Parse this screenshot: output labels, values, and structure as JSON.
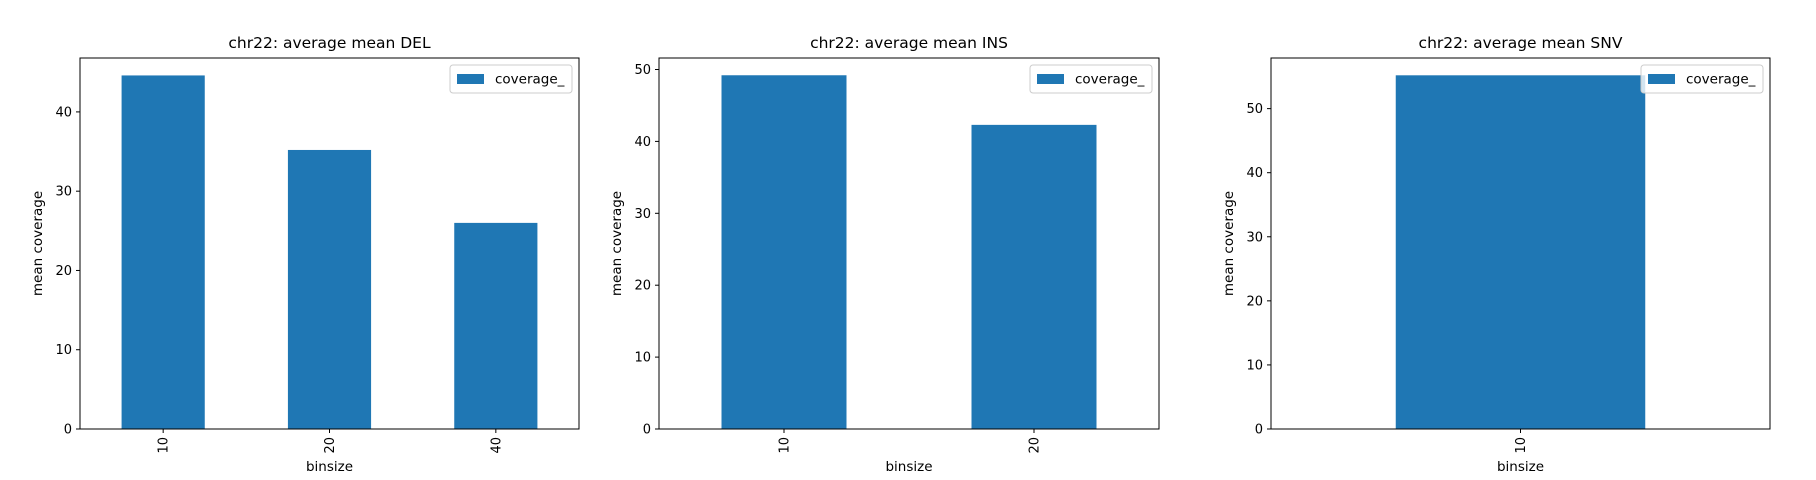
{
  "chart_data": [
    {
      "type": "bar",
      "title": "chr22: average mean DEL",
      "xlabel": "binsize",
      "ylabel": "mean coverage",
      "categories": [
        "10",
        "20",
        "40"
      ],
      "series": [
        {
          "name": "coverage_",
          "values": [
            44.6,
            35.2,
            26.0
          ]
        }
      ],
      "ylim": [
        0,
        46.8
      ],
      "yticks": [
        0,
        10,
        20,
        30,
        40
      ],
      "legend": "top-right",
      "color": "#1f77b4",
      "grid": false
    },
    {
      "type": "bar",
      "title": "chr22: average mean INS",
      "xlabel": "binsize",
      "ylabel": "mean coverage",
      "categories": [
        "10",
        "20"
      ],
      "series": [
        {
          "name": "coverage_",
          "values": [
            49.2,
            42.3
          ]
        }
      ],
      "ylim": [
        0,
        51.6
      ],
      "yticks": [
        0,
        10,
        20,
        30,
        40,
        50
      ],
      "legend": "top-right",
      "color": "#1f77b4",
      "grid": false
    },
    {
      "type": "bar",
      "title": "chr22: average mean SNV",
      "xlabel": "binsize",
      "ylabel": "mean coverage",
      "categories": [
        "10"
      ],
      "series": [
        {
          "name": "coverage_",
          "values": [
            55.2
          ]
        }
      ],
      "ylim": [
        0,
        57.9
      ],
      "yticks": [
        0,
        10,
        20,
        30,
        40,
        50
      ],
      "legend": "top-right",
      "color": "#1f77b4",
      "grid": false
    }
  ]
}
